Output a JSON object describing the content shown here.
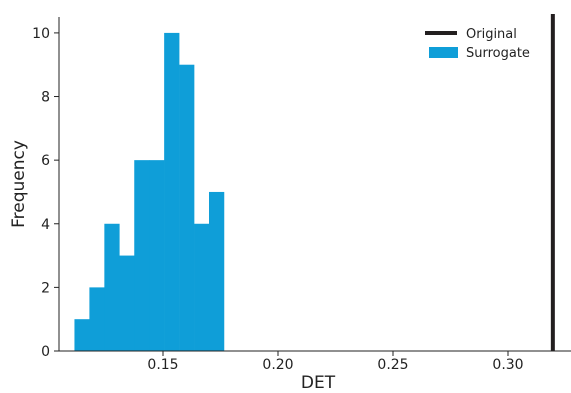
{
  "chart_data": {
    "type": "bar",
    "title": "",
    "xlabel": "DET",
    "ylabel": "Frequency",
    "xlim": [
      0.105,
      0.325
    ],
    "ylim": [
      0,
      10.5
    ],
    "x_ticks": [
      0.15,
      0.2,
      0.25,
      0.3
    ],
    "x_tick_labels": [
      "0.15",
      "0.20",
      "0.25",
      "0.30"
    ],
    "y_ticks": [
      0,
      2,
      4,
      6,
      8,
      10
    ],
    "y_tick_labels": [
      "0",
      "2",
      "4",
      "6",
      "8",
      "10"
    ],
    "grid": false,
    "legend_position": "top-right",
    "series": [
      {
        "name": "Surrogate",
        "kind": "histogram",
        "color": "#0f9ed8",
        "bin_edges": [
          0.1115,
          0.118,
          0.1245,
          0.131,
          0.1375,
          0.144,
          0.1505,
          0.157,
          0.1635,
          0.17,
          0.1765
        ],
        "counts": [
          1,
          2,
          4,
          3,
          6,
          6,
          10,
          9,
          4,
          5
        ]
      },
      {
        "name": "Original",
        "kind": "vline",
        "color": "#231f20",
        "x": 0.3195
      }
    ]
  }
}
